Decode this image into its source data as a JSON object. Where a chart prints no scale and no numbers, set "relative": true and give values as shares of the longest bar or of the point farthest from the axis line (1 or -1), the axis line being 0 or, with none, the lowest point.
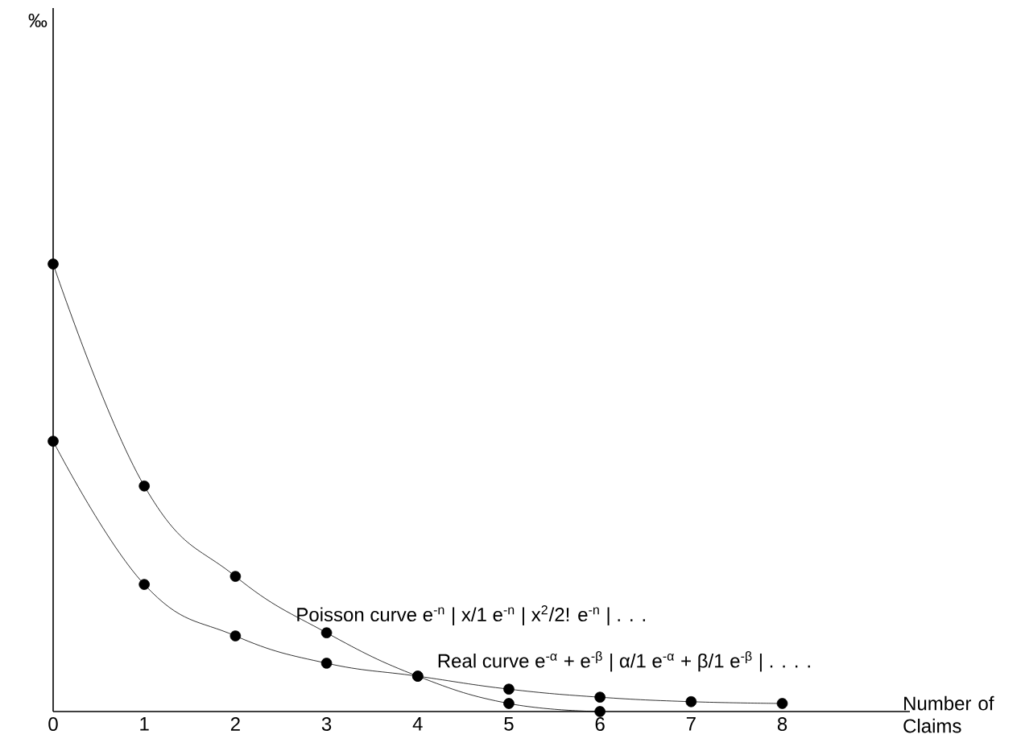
{
  "chart_data": {
    "type": "line",
    "relative": true,
    "annotations": [
      "‰"
    ],
    "xlabel": "Number of Claims",
    "x": [
      0,
      1,
      2,
      3,
      4,
      5,
      6,
      7,
      8
    ],
    "xlim": [
      0,
      9.4
    ],
    "xticks": [
      0,
      1,
      2,
      3,
      4,
      5,
      6,
      7,
      8
    ],
    "marker": "circle",
    "series": [
      {
        "name": "Poisson curve e$^{-n}$ | x/1 e$^{-n}$ | x$^{2}$/2! e$^{-n}$ | . . .",
        "color": "#000000",
        "values": [
          1,
          0.504,
          0.302,
          0.176,
          0.079,
          0.018,
          0,
          null,
          null
        ]
      },
      {
        "name": "Real curve e$^{-α}$ + e$^{-β}$ | α/1 e$^{-α}$ + β/1 e$^{-β}$ | . . . .",
        "color": "#000000",
        "values": [
          0.604,
          0.284,
          0.169,
          0.108,
          0.079,
          0.05,
          0.032,
          0.022,
          0.018
        ]
      }
    ]
  }
}
